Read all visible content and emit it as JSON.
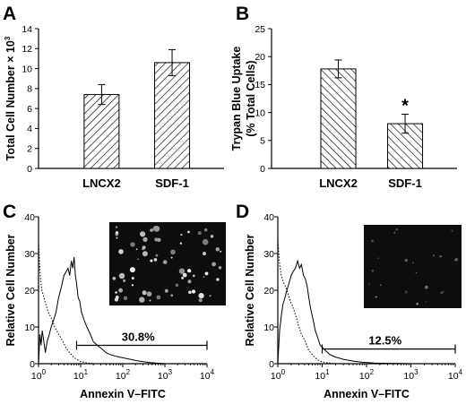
{
  "chart_data": [
    {
      "panel": "A",
      "type": "bar",
      "categories": [
        "LNCX2",
        "SDF-1"
      ],
      "values": [
        7.4,
        10.6
      ],
      "errors": [
        1.0,
        1.3
      ],
      "ylabel_main": "Total Cell Number × 10",
      "ylabel_exp": "3",
      "ylim": [
        0,
        14
      ],
      "yticks": [
        0,
        2,
        4,
        6,
        8,
        10,
        12,
        14
      ],
      "fill": "diagonal-hatch"
    },
    {
      "panel": "B",
      "type": "bar",
      "categories": [
        "LNCX2",
        "SDF-1"
      ],
      "values": [
        17.8,
        8.0
      ],
      "errors": [
        1.6,
        1.7
      ],
      "ylabel_line1": "Trypan Blue Uptake",
      "ylabel_line2": "(% Total Cells)",
      "ylim": [
        0,
        25
      ],
      "yticks": [
        0,
        5,
        10,
        15,
        20,
        25
      ],
      "significance": "*",
      "fill": "diagonal-hatch"
    },
    {
      "panel": "C",
      "type": "line",
      "xscale": "log",
      "xlim": [
        1,
        10000
      ],
      "ylim": [
        0,
        40
      ],
      "yticks": [
        0,
        10,
        20,
        30,
        40
      ],
      "xticks": [
        {
          "base": "10",
          "exp": "0"
        },
        {
          "base": "10",
          "exp": "1"
        },
        {
          "base": "10",
          "exp": "2"
        },
        {
          "base": "10",
          "exp": "3"
        },
        {
          "base": "10",
          "exp": "4"
        }
      ],
      "xlabel": "Annexin V–FITC",
      "ylabel": "Relative Cell Number",
      "gate": {
        "from": 8,
        "to": 10000,
        "level": 5,
        "label": "30.8%"
      },
      "series": [
        {
          "style": "solid",
          "x": [
            1,
            1.08,
            1.15,
            1.22,
            1.3,
            1.45,
            1.6,
            1.8,
            2.0,
            2.3,
            2.6,
            3.0,
            3.5,
            4.0,
            4.5,
            5.0,
            5.5,
            6.0,
            6.5,
            7.0,
            7.5,
            8.0,
            8.7,
            9.5,
            10.5,
            12,
            14,
            17,
            20,
            25,
            32,
            40,
            50,
            70,
            100,
            150,
            220,
            320,
            450,
            600,
            800,
            1000
          ],
          "y": [
            0,
            8,
            5,
            9,
            7,
            3,
            6,
            8,
            10,
            12,
            14,
            18,
            21,
            24,
            25,
            26,
            24,
            28,
            26,
            29,
            24,
            22,
            18,
            17,
            14,
            12,
            10,
            8,
            6,
            5,
            4,
            3,
            2.5,
            2,
            1.6,
            1.2,
            0.8,
            0.5,
            0.3,
            0.2,
            0.1,
            0
          ]
        },
        {
          "style": "dotted",
          "x": [
            1,
            1.1,
            1.2,
            1.35,
            1.5,
            1.7,
            1.9,
            2.1,
            2.4,
            2.7,
            3.0,
            3.4,
            3.8,
            4.2,
            4.8,
            5.5,
            6.5,
            8,
            10,
            14,
            20
          ],
          "y": [
            33,
            24,
            20,
            18,
            16,
            14,
            13,
            12,
            10,
            9,
            8,
            7,
            6,
            5,
            3.8,
            3,
            2,
            1.2,
            0.6,
            0.2,
            0
          ]
        }
      ],
      "inset": {
        "bright_spots": "many"
      }
    },
    {
      "panel": "D",
      "type": "line",
      "xscale": "log",
      "xlim": [
        1,
        10000
      ],
      "ylim": [
        0,
        40
      ],
      "yticks": [
        0,
        10,
        20,
        30,
        40
      ],
      "xticks": [
        {
          "base": "10",
          "exp": "0"
        },
        {
          "base": "10",
          "exp": "1"
        },
        {
          "base": "10",
          "exp": "2"
        },
        {
          "base": "10",
          "exp": "3"
        },
        {
          "base": "10",
          "exp": "4"
        }
      ],
      "xlabel": "Annexin V–FITC",
      "ylabel": "Relative Cell Number",
      "gate": {
        "from": 10,
        "to": 10000,
        "level": 4,
        "label": "12.5%"
      },
      "series": [
        {
          "style": "solid",
          "x": [
            1,
            1.1,
            1.2,
            1.3,
            1.45,
            1.6,
            1.8,
            2.0,
            2.2,
            2.5,
            2.8,
            3.1,
            3.4,
            3.8,
            4.2,
            4.6,
            5.0,
            5.5,
            6.0,
            6.5,
            7.0,
            8.0,
            9.0,
            10,
            12,
            15,
            20,
            30,
            50,
            80,
            150,
            300,
            600,
            1000
          ],
          "y": [
            0,
            9,
            13,
            16,
            18,
            20,
            22,
            24,
            25,
            26,
            28,
            26,
            27,
            24,
            23,
            21,
            18,
            15,
            13,
            11,
            9,
            7,
            5,
            4.5,
            3.5,
            2.5,
            1.8,
            1.2,
            0.7,
            0.4,
            0.2,
            0.1,
            0.05,
            0
          ]
        },
        {
          "style": "dotted",
          "x": [
            1,
            1.1,
            1.2,
            1.35,
            1.5,
            1.7,
            1.9,
            2.1,
            2.4,
            2.7,
            3.0,
            3.4,
            3.8,
            4.2,
            4.8,
            5.5,
            6.5,
            8,
            10,
            14,
            20
          ],
          "y": [
            34,
            27,
            24,
            22,
            21,
            19,
            17,
            16,
            14,
            12,
            10,
            8,
            7,
            6,
            4,
            3,
            2,
            1,
            0.5,
            0.2,
            0
          ]
        }
      ],
      "inset": {
        "bright_spots": "few"
      }
    }
  ]
}
